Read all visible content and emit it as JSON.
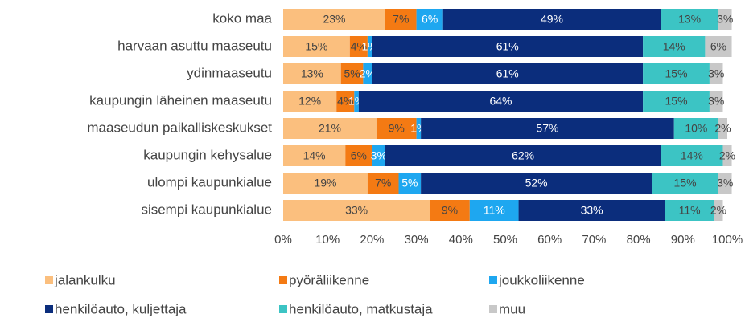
{
  "chart_data": {
    "type": "stacked-bar-horizontal",
    "categories": [
      "koko maa",
      "harvaan asuttu maaseutu",
      "ydinmaaseutu",
      "kaupungin läheinen maaseutu",
      "maaseudun paikalliskeskukset",
      "kaupungin kehysalue",
      "ulompi kaupunkialue",
      "sisempi kaupunkialue"
    ],
    "series": [
      {
        "name": "jalankulku",
        "color": "#fbbf7e",
        "values": [
          23,
          15,
          13,
          12,
          21,
          14,
          19,
          33
        ],
        "value_labels": [
          "23%",
          "15%",
          "13%",
          "12%",
          "21%",
          "14%",
          "19%",
          "33%"
        ]
      },
      {
        "name": "pyöräliikenne",
        "color": "#f47a13",
        "values": [
          7,
          4,
          5,
          4,
          9,
          6,
          7,
          9
        ],
        "value_labels": [
          "7%",
          "4%",
          "5%",
          "4%",
          "9%",
          "6%",
          "7%",
          "9%"
        ]
      },
      {
        "name": "joukkoliikenne",
        "color": "#1ea7f0",
        "values": [
          6,
          1,
          2,
          1,
          1,
          3,
          5,
          11
        ],
        "value_labels": [
          "6%",
          "1%",
          "2%",
          "1%",
          "1%",
          "3%",
          "5%",
          "11%"
        ]
      },
      {
        "name": "henkilöauto, kuljettaja",
        "color": "#0b2d7c",
        "values": [
          49,
          61,
          61,
          64,
          57,
          62,
          52,
          33
        ],
        "value_labels": [
          "49%",
          "61%",
          "61%",
          "64%",
          "57%",
          "62%",
          "52%",
          "33%"
        ]
      },
      {
        "name": "henkilöauto, matkustaja",
        "color": "#3cc4c4",
        "values": [
          13,
          14,
          15,
          15,
          10,
          14,
          15,
          11
        ],
        "value_labels": [
          "13%",
          "14%",
          "15%",
          "15%",
          "10%",
          "14%",
          "15%",
          "11%"
        ]
      },
      {
        "name": "muu",
        "color": "#c8c8c8",
        "values": [
          3,
          6,
          3,
          3,
          2,
          2,
          3,
          2
        ],
        "value_labels": [
          "3%",
          "6%",
          "3%",
          "3%",
          "2%",
          "2%",
          "3%",
          "2%"
        ]
      }
    ],
    "xlim": [
      0,
      100
    ],
    "xticks": [
      {
        "value": 0,
        "label": "0%"
      },
      {
        "value": 10,
        "label": "10%"
      },
      {
        "value": 20,
        "label": "20%"
      },
      {
        "value": 30,
        "label": "30%"
      },
      {
        "value": 40,
        "label": "40%"
      },
      {
        "value": 50,
        "label": "50%"
      },
      {
        "value": 60,
        "label": "60%"
      },
      {
        "value": 70,
        "label": "70%"
      },
      {
        "value": 80,
        "label": "80%"
      },
      {
        "value": 90,
        "label": "90%"
      },
      {
        "value": 100,
        "label": "100%"
      }
    ],
    "legend": "bottom"
  }
}
